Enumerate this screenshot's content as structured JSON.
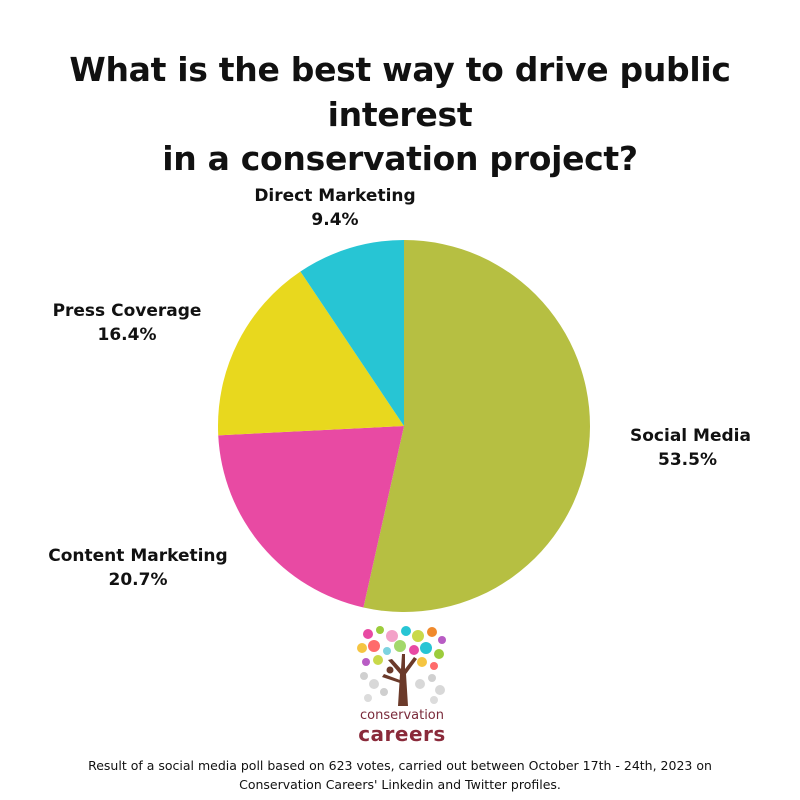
{
  "title_lines": [
    "What is the best way to drive public interest",
    "in a conservation project?"
  ],
  "chart_data": {
    "type": "pie",
    "title": "What is the best way to drive public interest in a conservation project?",
    "slices": [
      {
        "label": "Social Media",
        "value": 53.5,
        "value_label": "53.5%",
        "color": "#b6bf42"
      },
      {
        "label": "Content Marketing",
        "value": 20.7,
        "value_label": "20.7%",
        "color": "#e84aa3"
      },
      {
        "label": "Press Coverage",
        "value": 16.4,
        "value_label": "16.4%",
        "color": "#e8d81e"
      },
      {
        "label": "Direct Marketing",
        "value": 9.4,
        "value_label": "9.4%",
        "color": "#27c5d4"
      }
    ]
  },
  "logo": {
    "line1": "conservation",
    "line2": "careers"
  },
  "footnote_lines": [
    "Result of a social media poll based on 623 votes, carried out between October 17th - 24th, 2023 on",
    "Conservation Careers' Linkedin and Twitter profiles."
  ]
}
